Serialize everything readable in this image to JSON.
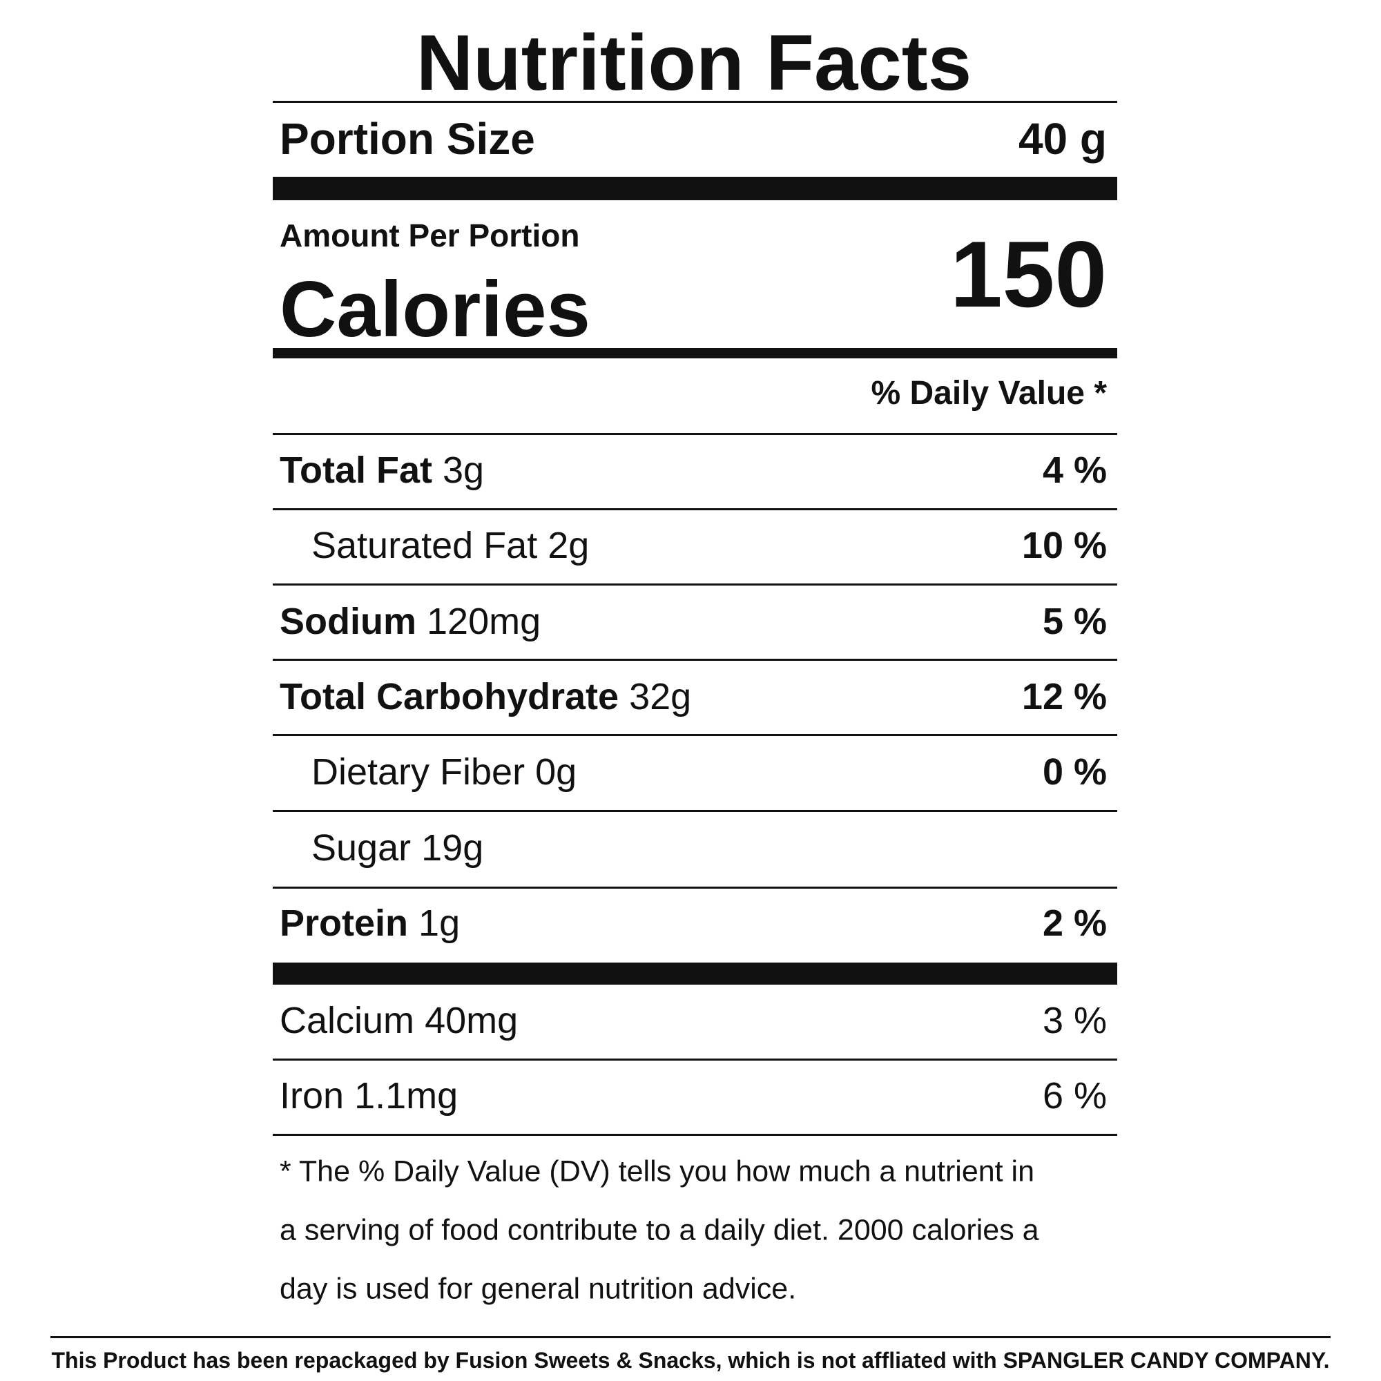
{
  "header": {
    "title": "Nutrition Facts",
    "portion_label": "Portion Size",
    "portion_value": "40 g"
  },
  "calories": {
    "amount_label": "Amount Per Portion",
    "label": "Calories",
    "value": "150"
  },
  "dv_header": "% Daily Value *",
  "rows": [
    {
      "name": "Total Fat",
      "amount": "3g",
      "dv": "4 %"
    },
    {
      "name": "Saturated Fat",
      "amount": "2g",
      "dv": "10 %"
    },
    {
      "name": "Sodium",
      "amount": "120mg",
      "dv": "5 %"
    },
    {
      "name": "Total Carbohydrate",
      "amount": "32g",
      "dv": "12 %"
    },
    {
      "name": "Dietary Fiber",
      "amount": "0g",
      "dv": "0 %"
    },
    {
      "name": "Sugar",
      "amount": "19g"
    },
    {
      "name": "Protein",
      "amount": "1g",
      "dv": "2 %"
    },
    {
      "name": "Calcium",
      "amount": "40mg",
      "dv": "3 %"
    },
    {
      "name": "Iron",
      "amount": "1.1mg",
      "dv": "6 %"
    }
  ],
  "footnote": [
    "* The % Daily Value (DV) tells you how much a nutrient in",
    "a serving of food contribute to a daily diet. 2000 calories a",
    "day is used for general nutrition advice."
  ],
  "disclaimer": "This Product has been repackaged by Fusion Sweets & Snacks, which is not affliated with SPANGLER CANDY COMPANY."
}
